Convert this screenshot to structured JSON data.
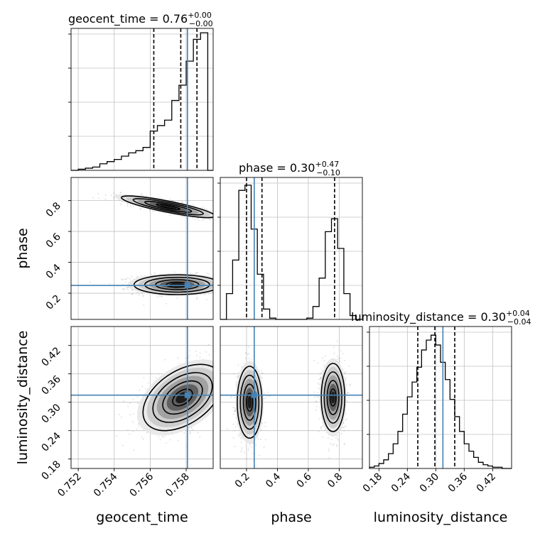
{
  "chart_data": {
    "type": "corner",
    "parameters": [
      "geocent_time",
      "phase",
      "luminosity_distance"
    ],
    "truths": {
      "geocent_time": 0.75807,
      "phase": 0.25,
      "luminosity_distance": 0.315
    },
    "colors": {
      "truth": "#4682b4",
      "hist": "#000000",
      "grid": "#c0c0c0",
      "samples": "#9a9a9a"
    },
    "grid": true,
    "diagonal": [
      {
        "parameter": "geocent_time",
        "title": {
          "text": "geocent_time = 0.76",
          "sup": "+0.00",
          "sub": "−0.00"
        },
        "xlim": [
          0.7516,
          0.7595
        ],
        "bins_x": [
          0.7516,
          0.752,
          0.7524,
          0.7528,
          0.7532,
          0.7536,
          0.754,
          0.7544,
          0.7548,
          0.7552,
          0.7556,
          0.756,
          0.7564,
          0.7568,
          0.7572,
          0.7576,
          0.758,
          0.7584,
          0.7588,
          0.7592
        ],
        "counts": [
          0,
          1,
          2,
          3,
          6,
          8,
          10,
          13,
          16,
          18,
          21,
          36,
          41,
          46,
          64,
          78,
          100,
          120,
          126,
          0
        ],
        "ymax": 130,
        "quantiles": [
          0.7562,
          0.7577,
          0.7586
        ],
        "xticks": [
          "0.752",
          "0.754",
          "0.756",
          "0.758"
        ],
        "xtick_values": [
          0.752,
          0.754,
          0.756,
          0.758
        ]
      },
      {
        "parameter": "phase",
        "title": {
          "text": "phase = 0.30",
          "sup": "+0.47",
          "sub": "−0.10"
        },
        "xlim": [
          0.03,
          0.95
        ],
        "bins_x": [
          0.03,
          0.07,
          0.11,
          0.15,
          0.19,
          0.23,
          0.27,
          0.31,
          0.35,
          0.39,
          0.43,
          0.47,
          0.51,
          0.55,
          0.59,
          0.63,
          0.67,
          0.71,
          0.75,
          0.79,
          0.83,
          0.87,
          0.91
        ],
        "counts": [
          0,
          20,
          46,
          100,
          104,
          70,
          35,
          8,
          1,
          0,
          0,
          0,
          0,
          0,
          1,
          10,
          32,
          68,
          78,
          55,
          20,
          3,
          0
        ],
        "ymax": 110,
        "quantiles": [
          0.2,
          0.3,
          0.77
        ],
        "xticks": [
          "0.2",
          "0.4",
          "0.6",
          "0.8"
        ],
        "xtick_values": [
          0.2,
          0.4,
          0.6,
          0.8
        ]
      },
      {
        "parameter": "luminosity_distance",
        "title": {
          "text": "luminosity_distance = 0.30",
          "sup": "+0.04",
          "sub": "−0.04"
        },
        "xlim": [
          0.16,
          0.46
        ],
        "bins_x": [
          0.16,
          0.17,
          0.18,
          0.19,
          0.2,
          0.21,
          0.22,
          0.23,
          0.24,
          0.25,
          0.26,
          0.27,
          0.28,
          0.29,
          0.3,
          0.31,
          0.32,
          0.33,
          0.34,
          0.35,
          0.36,
          0.37,
          0.38,
          0.39,
          0.4,
          0.41,
          0.42,
          0.43,
          0.44,
          0.45
        ],
        "counts": [
          1,
          2,
          4,
          7,
          12,
          20,
          30,
          44,
          58,
          70,
          82,
          96,
          104,
          108,
          100,
          86,
          72,
          56,
          42,
          30,
          20,
          14,
          9,
          5,
          3,
          2,
          1,
          1,
          0,
          0
        ],
        "ymax": 115,
        "quantiles": [
          0.262,
          0.298,
          0.34
        ],
        "xticks": [
          "0.18",
          "0.24",
          "0.30",
          "0.36",
          "0.42"
        ],
        "xtick_values": [
          0.18,
          0.24,
          0.3,
          0.36,
          0.42
        ]
      }
    ],
    "axes": {
      "geocent_time": {
        "label": "geocent_time",
        "lim": [
          0.7516,
          0.7595
        ],
        "ticks": [
          "0.752",
          "0.754",
          "0.756",
          "0.758"
        ],
        "tick_values": [
          0.752,
          0.754,
          0.756,
          0.758
        ]
      },
      "phase": {
        "label": "phase",
        "lim": [
          0.03,
          0.95
        ],
        "ticks": [
          "0.2",
          "0.4",
          "0.6",
          "0.8"
        ],
        "tick_values": [
          0.2,
          0.4,
          0.6,
          0.8
        ]
      },
      "luminosity_distance": {
        "label": "luminosity_distance",
        "lim": [
          0.16,
          0.46
        ],
        "ticks": [
          "0.18",
          "0.24",
          "0.30",
          "0.36",
          "0.42"
        ],
        "tick_values": [
          0.18,
          0.24,
          0.3,
          0.36,
          0.42
        ]
      }
    },
    "contours": [
      {
        "x": "geocent_time",
        "y": "phase",
        "modes": [
          {
            "cx": 0.7575,
            "cy": 0.255,
            "sx": 0.0012,
            "sy": 0.032,
            "corr": 0.0
          },
          {
            "cx": 0.757,
            "cy": 0.76,
            "sx": 0.0013,
            "sy": 0.035,
            "corr": -0.85
          }
        ]
      },
      {
        "x": "geocent_time",
        "y": "luminosity_distance",
        "modes": [
          {
            "cx": 0.7578,
            "cy": 0.31,
            "sx": 0.0011,
            "sy": 0.035,
            "corr": 0.45
          }
        ]
      },
      {
        "x": "phase",
        "y": "luminosity_distance",
        "modes": [
          {
            "cx": 0.22,
            "cy": 0.3,
            "sx": 0.04,
            "sy": 0.038,
            "corr": 0.0
          },
          {
            "cx": 0.76,
            "cy": 0.31,
            "sx": 0.038,
            "sy": 0.036,
            "corr": 0.0
          }
        ]
      }
    ],
    "contour_levels": [
      0.5,
      1.0,
      1.5,
      2.0
    ]
  }
}
